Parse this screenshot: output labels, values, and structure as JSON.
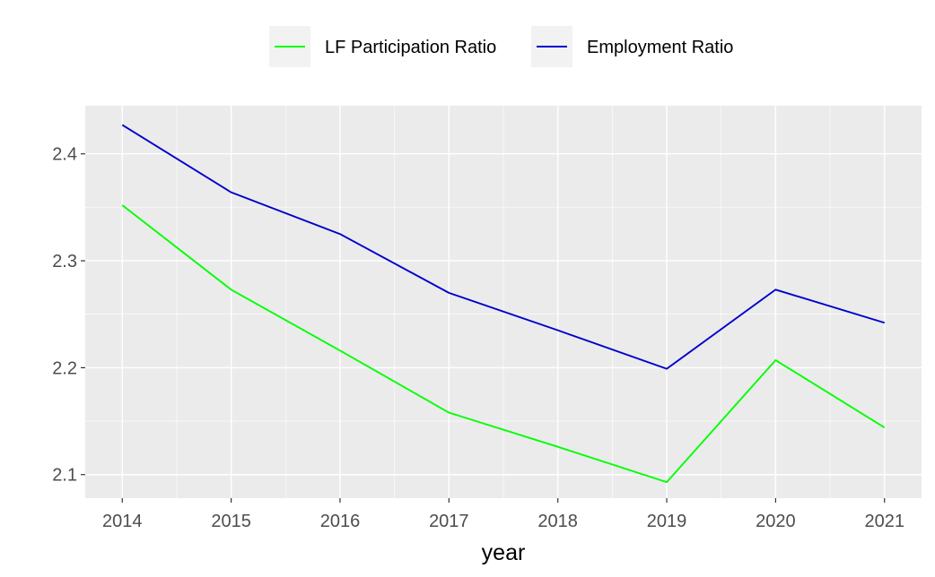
{
  "chart_data": {
    "type": "line",
    "title": "",
    "xlabel": "year",
    "ylabel": "",
    "x": [
      2014,
      2015,
      2016,
      2017,
      2018,
      2019,
      2020,
      2021
    ],
    "xlim": [
      2013.66,
      2021.34
    ],
    "ylim": [
      2.078,
      2.445
    ],
    "x_ticks": [
      "2014",
      "2015",
      "2016",
      "2017",
      "2018",
      "2019",
      "2020",
      "2021"
    ],
    "y_ticks": [
      "2.1",
      "2.2",
      "2.3",
      "2.4"
    ],
    "grid": true,
    "legend_position": "top",
    "series": [
      {
        "name": "LF Participation Ratio",
        "color": "#00ff00",
        "values": [
          2.352,
          2.273,
          2.216,
          2.158,
          2.126,
          2.093,
          2.207,
          2.144
        ]
      },
      {
        "name": "Employment Ratio",
        "color": "#0000cd",
        "values": [
          2.427,
          2.364,
          2.325,
          2.27,
          2.235,
          2.199,
          2.273,
          2.242
        ]
      }
    ]
  }
}
